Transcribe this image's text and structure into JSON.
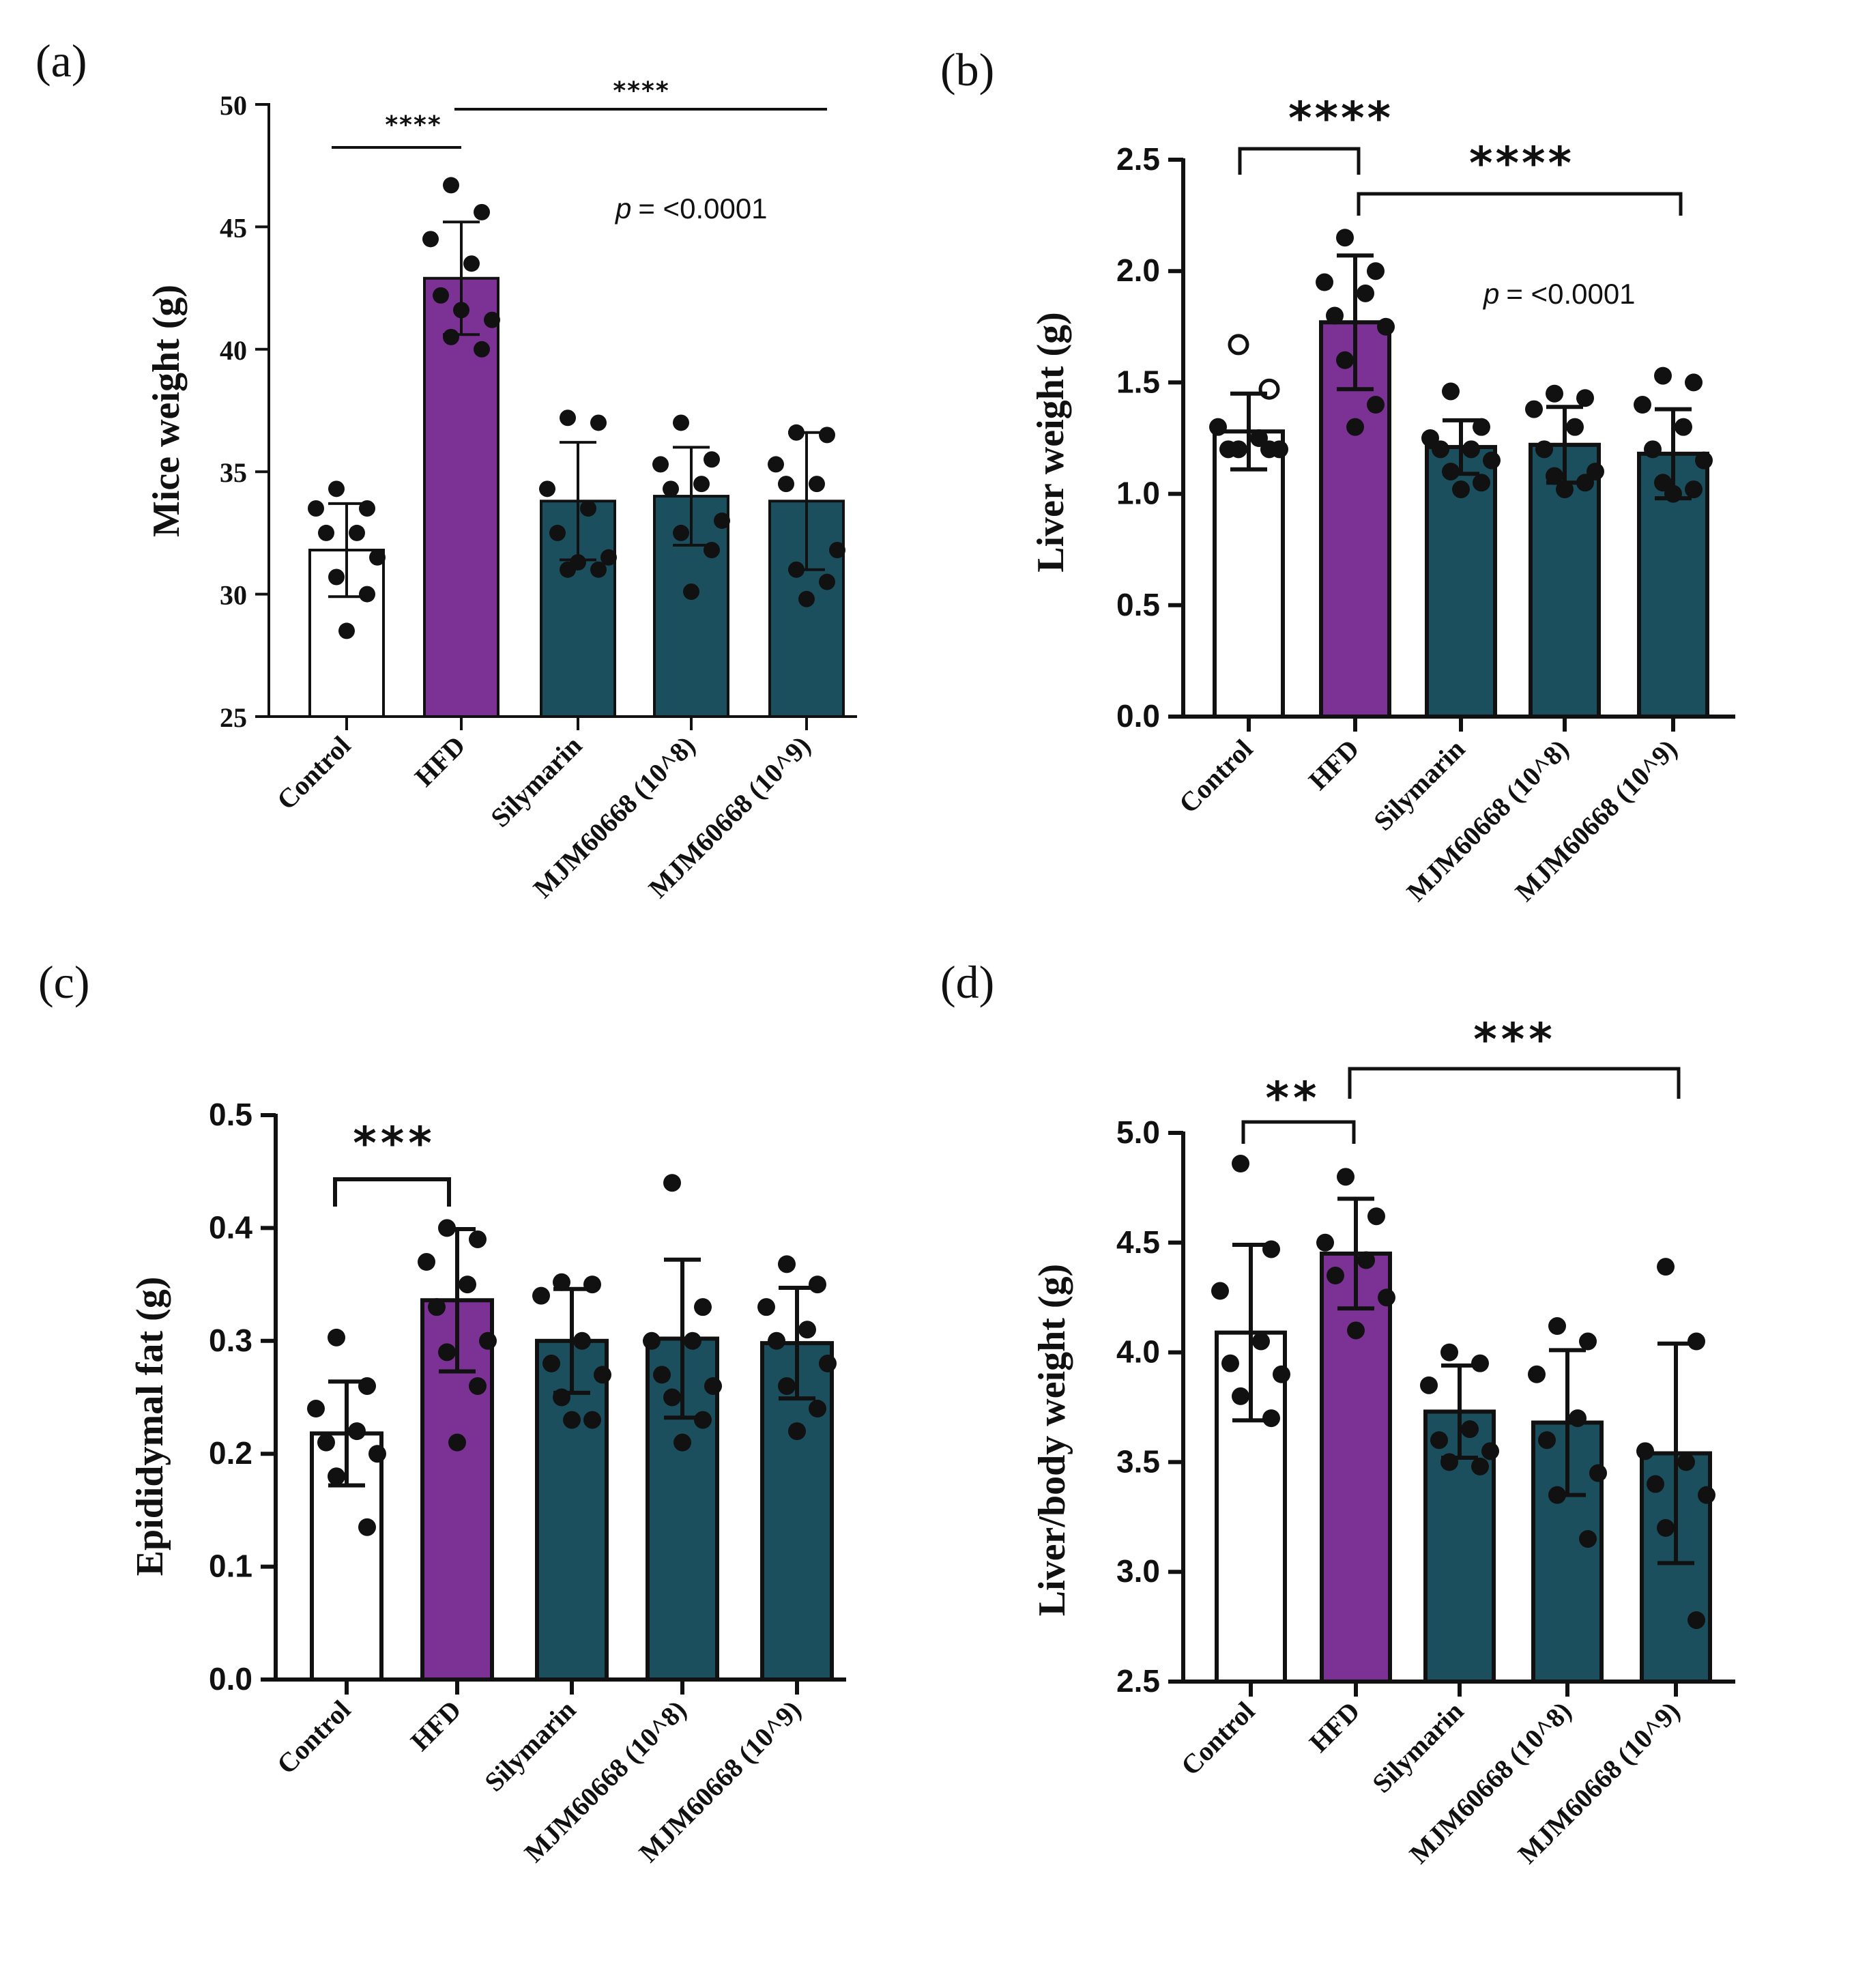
{
  "figure": {
    "colors": {
      "control": "#ffffff",
      "hfd": "#7b3294",
      "treatment": "#1b4f5e",
      "ink": "#111111"
    }
  },
  "chart_data": [
    {
      "panel": "(a)",
      "type": "bar",
      "ylabel": "Mice weight (g)",
      "ylim": [
        25,
        50
      ],
      "yticks": [
        "25",
        "30",
        "35",
        "40",
        "45",
        "50"
      ],
      "categories": [
        "Control",
        "HFD",
        "Silymarin",
        "MJM60668 (10^8)",
        "MJM60668 (10^9)"
      ],
      "values": [
        31.8,
        42.9,
        33.8,
        34.0,
        33.8
      ],
      "sd": [
        1.9,
        2.3,
        2.4,
        2.0,
        2.8
      ],
      "points": [
        [
          34.3,
          33.5,
          33.5,
          32.5,
          32.5,
          31.5,
          30.7,
          30.0,
          28.5
        ],
        [
          46.7,
          45.6,
          44.5,
          43.5,
          42.2,
          41.2,
          40.5,
          40.0,
          41.6
        ],
        [
          37.2,
          37.0,
          34.3,
          33.5,
          32.5,
          31.5,
          31.0,
          31.0,
          31.3
        ],
        [
          37.0,
          35.5,
          35.3,
          34.5,
          34.3,
          33.0,
          32.5,
          31.8,
          30.1
        ],
        [
          36.6,
          36.5,
          35.3,
          34.5,
          34.5,
          31.8,
          31.0,
          30.5,
          29.8
        ]
      ],
      "annotations": {
        "comparison_1": "****",
        "comparison_2": "****",
        "p_prefix": "p",
        "p_value": "= <0.0001"
      }
    },
    {
      "panel": "(b)",
      "type": "bar",
      "ylabel": "Liver weight (g)",
      "ylim": [
        0.0,
        2.5
      ],
      "yticks": [
        "0.0",
        "0.5",
        "1.0",
        "1.5",
        "2.0",
        "2.5"
      ],
      "categories": [
        "Control",
        "HFD",
        "Silymarin",
        "MJM60668 (10^8)",
        "MJM60668 (10^9)"
      ],
      "values": [
        1.28,
        1.77,
        1.21,
        1.22,
        1.18
      ],
      "sd": [
        0.17,
        0.3,
        0.12,
        0.17,
        0.2
      ],
      "points": [
        [
          1.67,
          1.47,
          1.3,
          1.25,
          1.2,
          1.2,
          1.2,
          1.2
        ],
        [
          2.15,
          2.0,
          1.95,
          1.9,
          1.8,
          1.75,
          1.6,
          1.4,
          1.3
        ],
        [
          1.46,
          1.3,
          1.25,
          1.2,
          1.2,
          1.15,
          1.1,
          1.05,
          1.02
        ],
        [
          1.45,
          1.43,
          1.38,
          1.3,
          1.2,
          1.1,
          1.08,
          1.05,
          1.02
        ],
        [
          1.53,
          1.5,
          1.4,
          1.3,
          1.2,
          1.15,
          1.05,
          1.02,
          1.0
        ]
      ],
      "annotations": {
        "comparison_1": "****",
        "comparison_2": "****",
        "p_prefix": "p",
        "p_value": "= <0.0001"
      }
    },
    {
      "panel": "(c)",
      "type": "bar",
      "ylabel": "Epididymal fat (g)",
      "ylim": [
        0.0,
        0.5
      ],
      "yticks": [
        "0.0",
        "0.1",
        "0.2",
        "0.3",
        "0.4",
        "0.5"
      ],
      "categories": [
        "Control",
        "HFD",
        "Silymarin",
        "MJM60668 (10^8)",
        "MJM60668 (10^9)"
      ],
      "values": [
        0.218,
        0.336,
        0.3,
        0.302,
        0.298
      ],
      "sd": [
        0.046,
        0.063,
        0.046,
        0.07,
        0.049
      ],
      "points": [
        [
          0.303,
          0.26,
          0.24,
          0.22,
          0.21,
          0.2,
          0.18,
          0.135
        ],
        [
          0.4,
          0.39,
          0.37,
          0.35,
          0.33,
          0.3,
          0.29,
          0.26,
          0.21
        ],
        [
          0.352,
          0.35,
          0.34,
          0.3,
          0.28,
          0.27,
          0.25,
          0.23,
          0.23
        ],
        [
          0.44,
          0.33,
          0.3,
          0.3,
          0.27,
          0.26,
          0.25,
          0.23,
          0.21
        ],
        [
          0.368,
          0.35,
          0.33,
          0.31,
          0.3,
          0.28,
          0.26,
          0.24,
          0.22
        ]
      ],
      "annotations": {
        "comparison_1": "***"
      }
    },
    {
      "panel": "(d)",
      "type": "bar",
      "ylabel": "Liver/body weight (g)",
      "ylim": [
        2.5,
        5.0
      ],
      "yticks": [
        "2.5",
        "3.0",
        "3.5",
        "4.0",
        "4.5",
        "5.0"
      ],
      "categories": [
        "Control",
        "HFD",
        "Silymarin",
        "MJM60668 (10^8)",
        "MJM60668 (10^9)"
      ],
      "values": [
        4.09,
        4.45,
        3.73,
        3.68,
        3.54
      ],
      "sd": [
        0.4,
        0.25,
        0.21,
        0.33,
        0.5
      ],
      "points": [
        [
          4.86,
          4.47,
          4.28,
          4.05,
          3.95,
          3.9,
          3.8,
          3.7
        ],
        [
          4.8,
          4.62,
          4.5,
          4.42,
          4.35,
          4.25,
          4.1
        ],
        [
          4.0,
          3.95,
          3.85,
          3.65,
          3.6,
          3.55,
          3.5,
          3.48
        ],
        [
          4.12,
          4.05,
          3.9,
          3.7,
          3.6,
          3.45,
          3.35,
          3.15
        ],
        [
          4.39,
          4.05,
          3.55,
          3.5,
          3.4,
          3.35,
          3.2,
          2.78
        ]
      ],
      "annotations": {
        "comparison_1": "**",
        "comparison_2": "***"
      }
    }
  ]
}
